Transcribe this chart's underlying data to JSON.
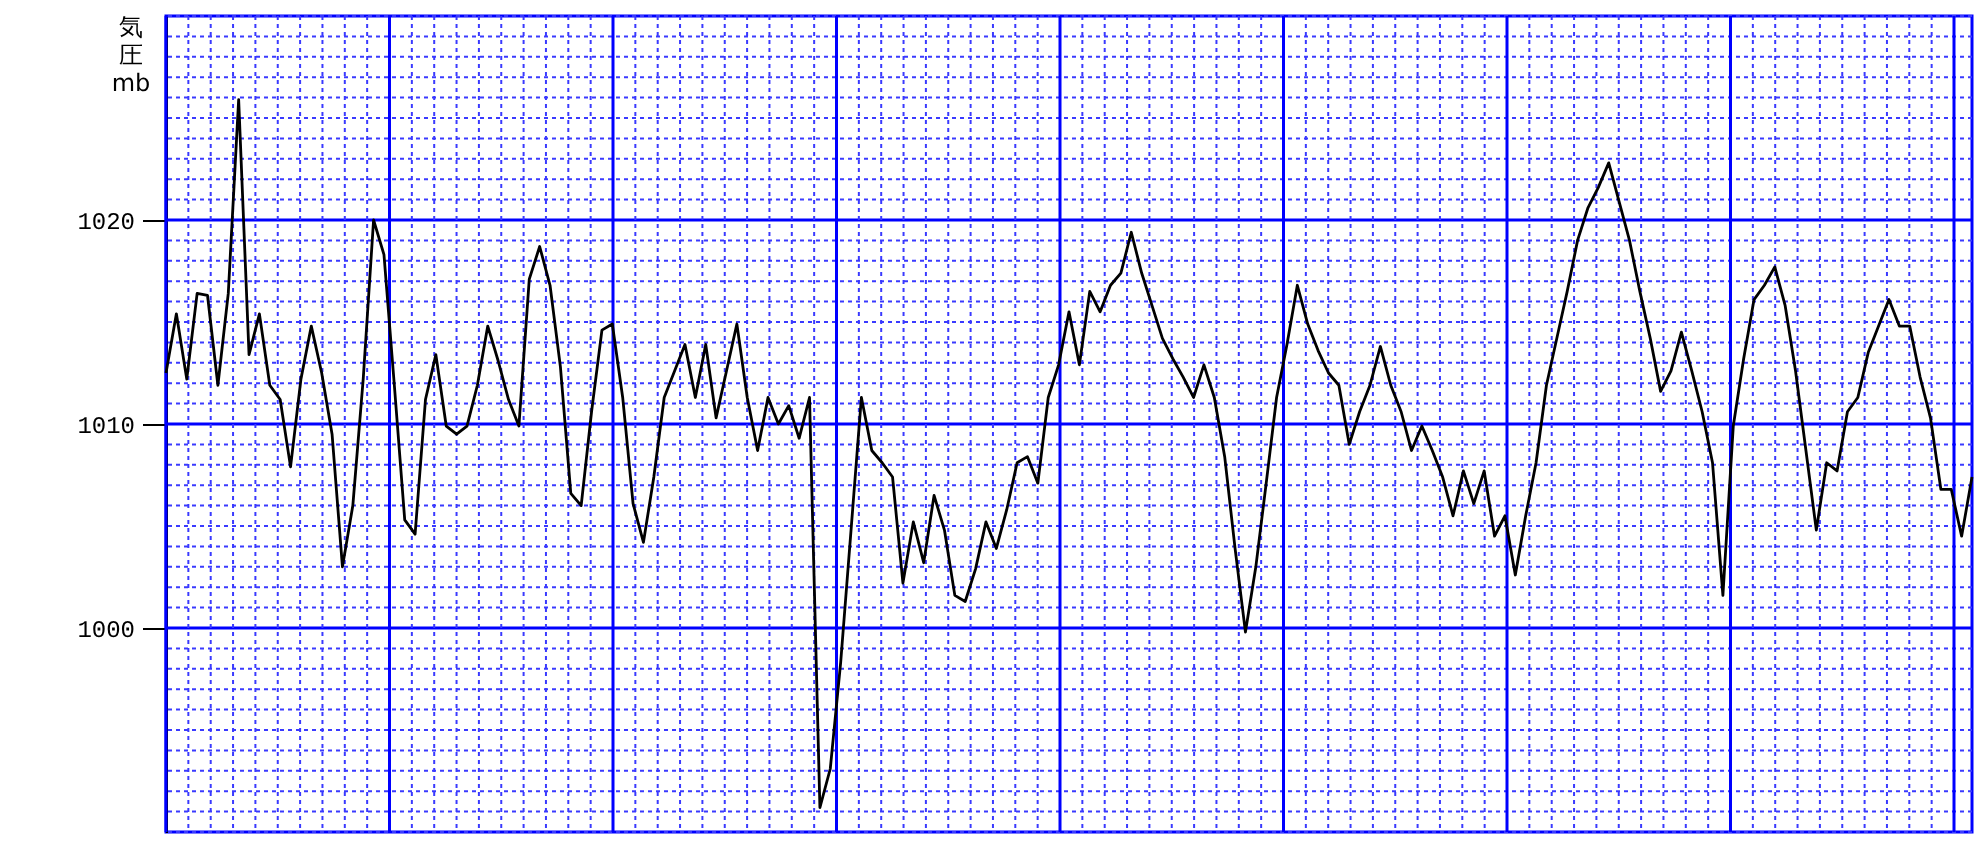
{
  "chart_data": {
    "type": "line",
    "ylabel": "気圧 mb",
    "ylim": [
      990,
      1030
    ],
    "yticks": [
      1000,
      1010,
      1020
    ],
    "grid": true,
    "categories": [
      null,
      null,
      null,
      null,
      null,
      null,
      null,
      null,
      null,
      null,
      null,
      null,
      null,
      null,
      null,
      null,
      null,
      null,
      null,
      null,
      null,
      null,
      null,
      null,
      null,
      null,
      null,
      null,
      null,
      null,
      null,
      null,
      null,
      null,
      null,
      null,
      null,
      null,
      null,
      null,
      null,
      null,
      null,
      null,
      null,
      null,
      null,
      null,
      null,
      null,
      null,
      null,
      null,
      null,
      null,
      null,
      null,
      null,
      null,
      null,
      null,
      null,
      null,
      null,
      null,
      null,
      null,
      null,
      null,
      null,
      null,
      null,
      null,
      null,
      null,
      null,
      null,
      null,
      null,
      null,
      null,
      null,
      null,
      null,
      null,
      null,
      null,
      null,
      null,
      null,
      null,
      null,
      null,
      null,
      null,
      null,
      null,
      null,
      null,
      null,
      null,
      null,
      null,
      null,
      null,
      null,
      null,
      null,
      null,
      null,
      null,
      null,
      null,
      null,
      null,
      null,
      null,
      null,
      null,
      null,
      null,
      null,
      null,
      null,
      null,
      null,
      null,
      null,
      null,
      null,
      null,
      null,
      null,
      null,
      null,
      null,
      null,
      null,
      null,
      null,
      null,
      null,
      null,
      null,
      null,
      null,
      null,
      null,
      null,
      null,
      null,
      null,
      null,
      null,
      null,
      null,
      null,
      null,
      null,
      null,
      null,
      null,
      null,
      null,
      null,
      null,
      null,
      null,
      null,
      null,
      null,
      null,
      null,
      null,
      null
    ],
    "values": [
      1012.5,
      1015.4,
      1012.2,
      1016.4,
      1016.3,
      1011.9,
      1016.4,
      1025.9,
      1013.4,
      1015.4,
      1011.9,
      1011.2,
      1007.9,
      1012.2,
      1014.8,
      1012.5,
      1009.5,
      1003.0,
      1006.0,
      1012.2,
      1020.0,
      1018.3,
      1011.9,
      1005.3,
      1004.6,
      1011.2,
      1013.4,
      1009.9,
      1009.5,
      1009.9,
      1011.9,
      1014.8,
      1013.1,
      1011.2,
      1009.9,
      1017.1,
      1018.7,
      1016.8,
      1012.8,
      1006.6,
      1006.0,
      1010.6,
      1014.6,
      1014.9,
      1011.3,
      1006.1,
      1004.2,
      1007.4,
      1011.3,
      1012.6,
      1013.9,
      1011.3,
      1013.9,
      1010.3,
      1012.6,
      1014.9,
      1011.3,
      1008.7,
      1011.3,
      1010.0,
      1010.9,
      1009.3,
      1011.3,
      991.2,
      993.1,
      998.3,
      1004.8,
      1011.3,
      1008.7,
      1008.1,
      1007.4,
      1002.2,
      1005.2,
      1003.2,
      1006.5,
      1004.8,
      1001.6,
      1001.3,
      1002.9,
      1005.2,
      1003.9,
      1005.8,
      1008.1,
      1008.4,
      1007.1,
      1011.3,
      1012.9,
      1015.5,
      1012.9,
      1016.5,
      1015.5,
      1016.8,
      1017.4,
      1019.4,
      1017.4,
      1015.8,
      1014.2,
      1013.2,
      1012.3,
      1011.3,
      1012.9,
      1011.3,
      1008.4,
      1003.9,
      999.8,
      1003.0,
      1007.1,
      1011.3,
      1013.9,
      1016.8,
      1014.9,
      1013.6,
      1012.5,
      1011.9,
      1009.0,
      1010.6,
      1011.9,
      1013.8,
      1011.9,
      1010.6,
      1008.7,
      1009.9,
      1008.7,
      1007.4,
      1005.5,
      1007.7,
      1006.1,
      1007.7,
      1004.5,
      1005.5,
      1002.6,
      1005.5,
      1008.1,
      1011.9,
      1014.2,
      1016.5,
      1019.0,
      1020.6,
      1021.6,
      1022.8,
      1020.9,
      1019.0,
      1016.5,
      1014.2,
      1011.6,
      1012.6,
      1014.5,
      1012.6,
      1010.6,
      1008.1,
      1001.6,
      1009.9,
      1013.2,
      1016.1,
      1016.8,
      1017.7,
      1015.8,
      1012.6,
      1008.7,
      1004.8,
      1008.1,
      1007.7,
      1010.6,
      1011.3,
      1013.5,
      1014.8,
      1016.1,
      1014.8,
      1014.8,
      1012.3,
      1010.3,
      1006.8,
      1006.8,
      1004.5,
      1007.4
    ]
  }
}
